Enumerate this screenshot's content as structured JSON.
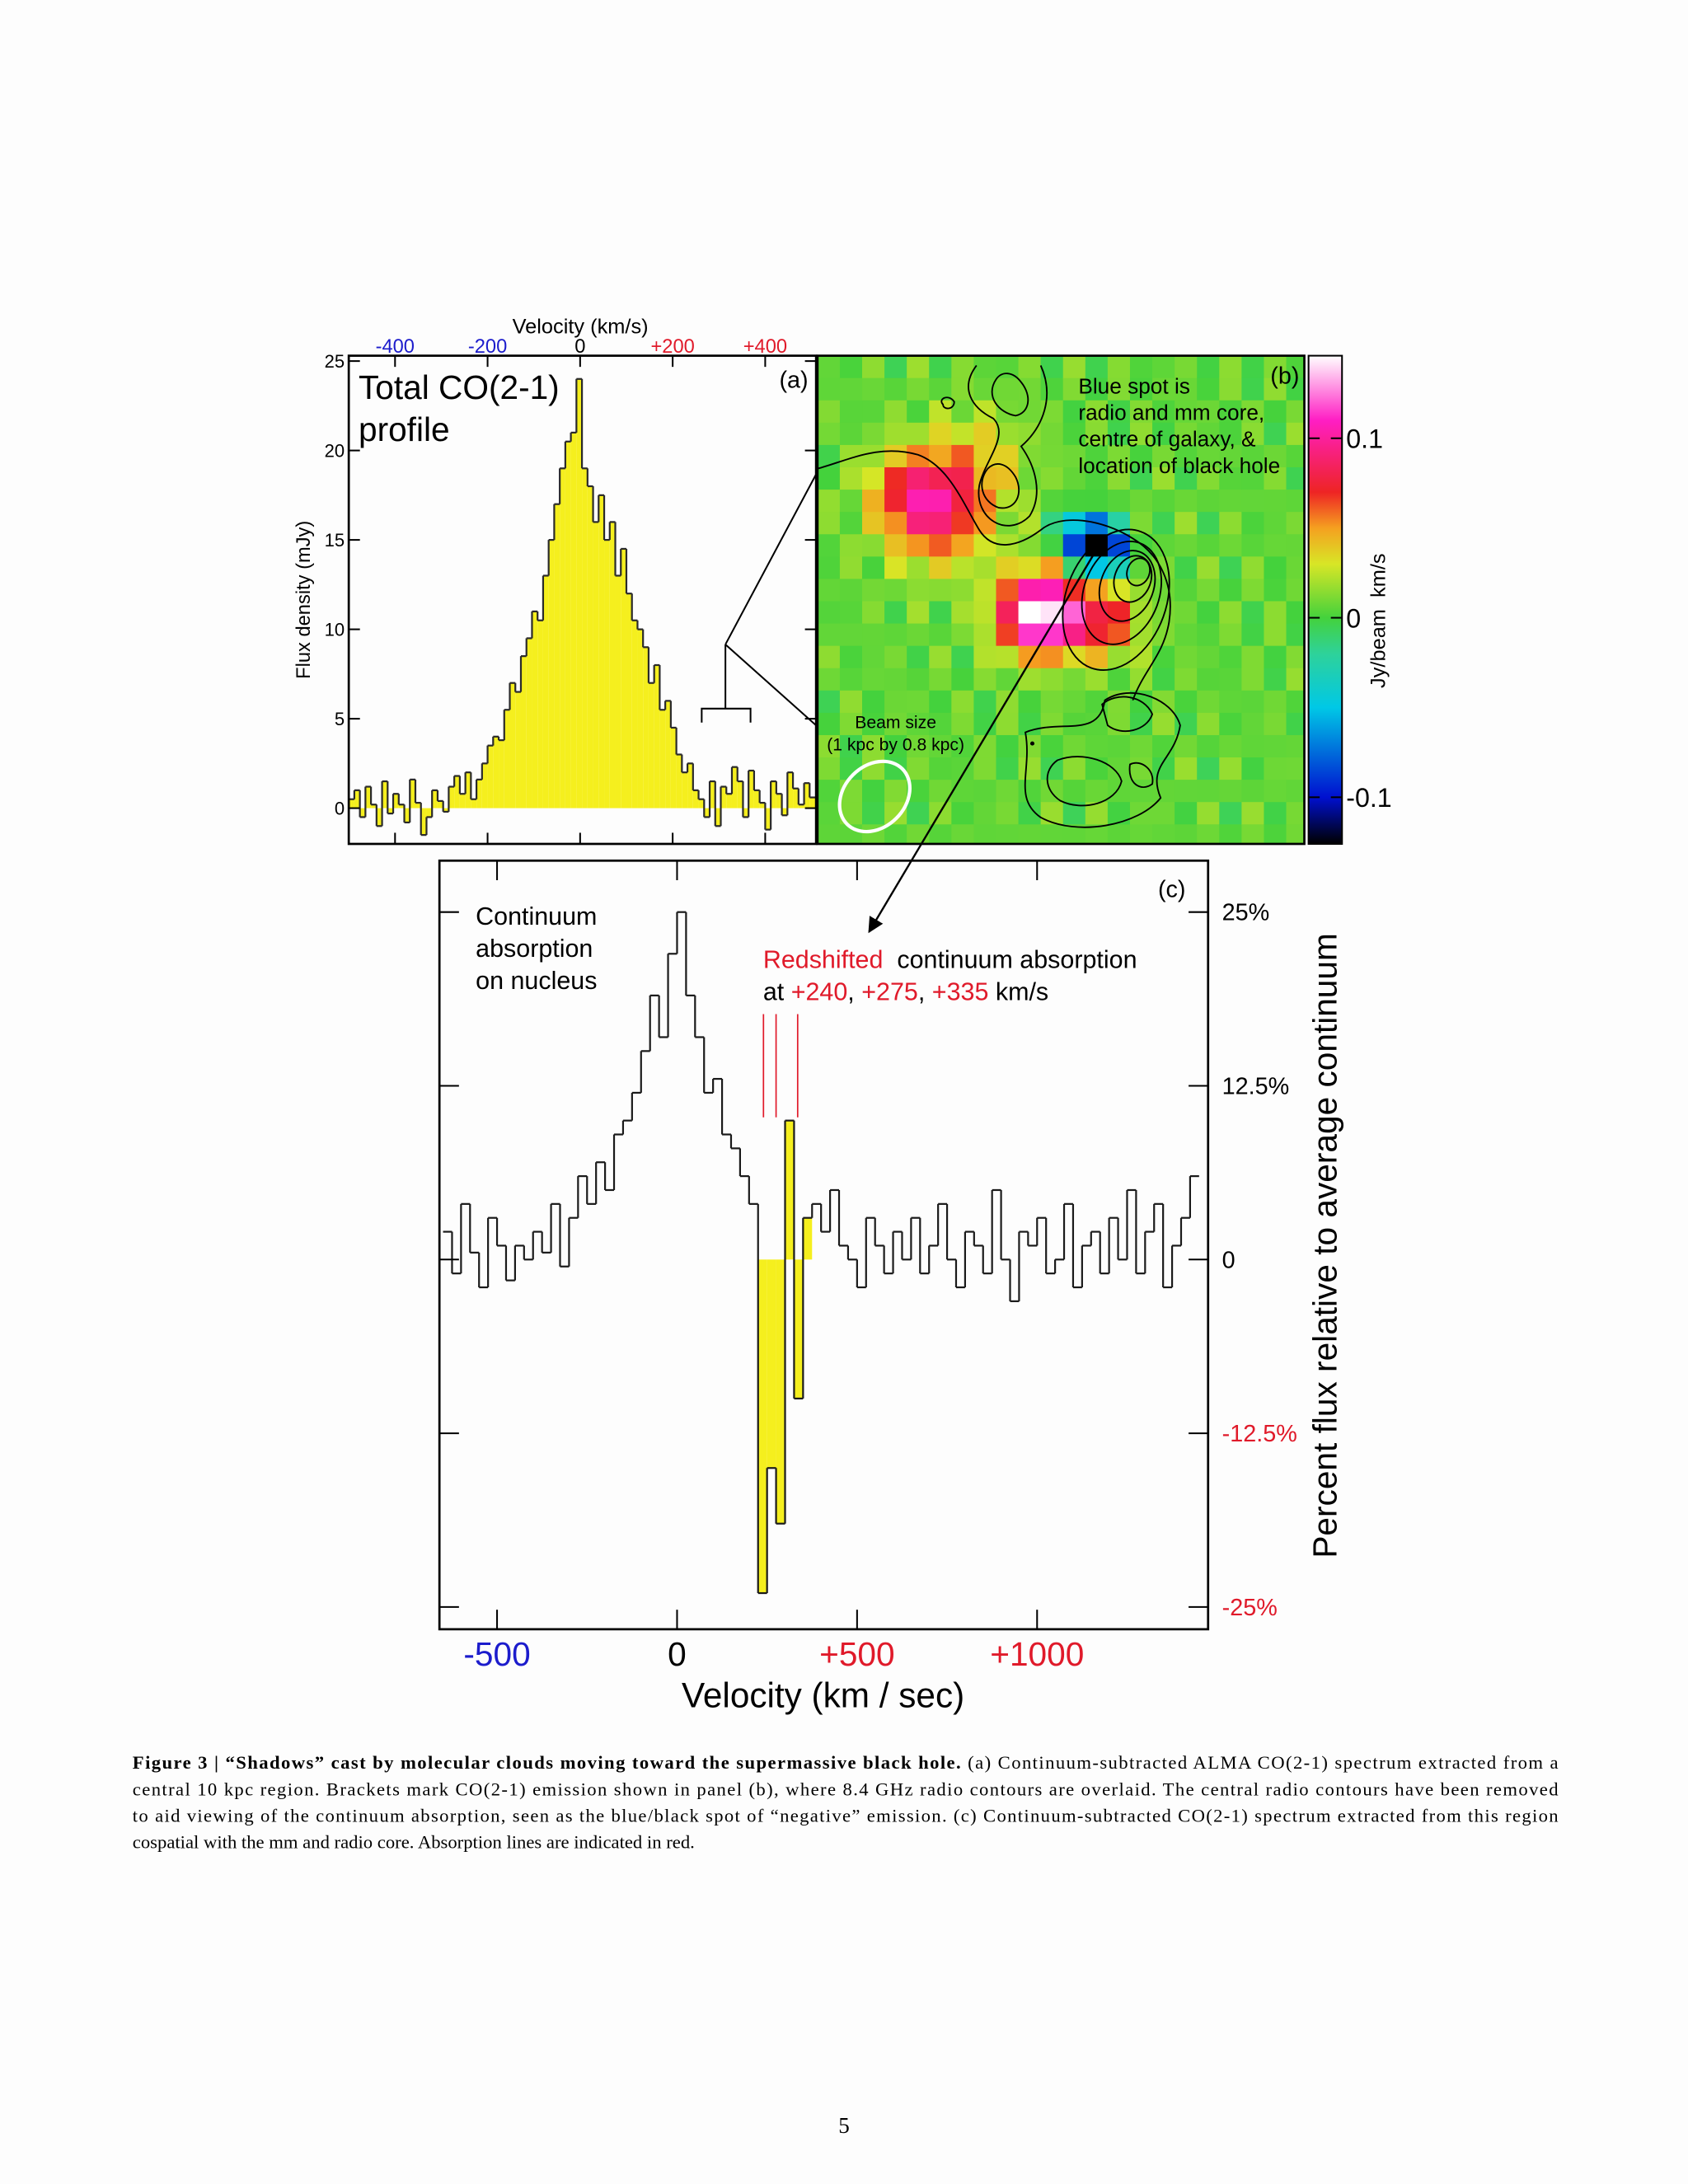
{
  "chart_data": [
    {
      "type": "histogram",
      "title_lines": [
        "Total CO(2-1)",
        "profile"
      ],
      "panel_label": "(a)",
      "xlabel": "Velocity (km/s)",
      "ylabel": "Flux density (mJy)",
      "bins": [
        -500,
        -488,
        -476,
        -464,
        -452,
        -440,
        -428,
        -416,
        -404,
        -392,
        -380,
        -368,
        -356,
        -344,
        -332,
        -320,
        -308,
        -296,
        -284,
        -272,
        -260,
        -248,
        -236,
        -224,
        -212,
        -200,
        -188,
        -176,
        -164,
        -152,
        -140,
        -128,
        -116,
        -104,
        -92,
        -80,
        -68,
        -56,
        -44,
        -32,
        -20,
        -8,
        4,
        16,
        28,
        40,
        52,
        64,
        76,
        88,
        100,
        112,
        124,
        136,
        148,
        160,
        172,
        184,
        196,
        208,
        220,
        232,
        244,
        256,
        268,
        280,
        292,
        304,
        316,
        328,
        340,
        352,
        364,
        376,
        388,
        400,
        412,
        424,
        436,
        448,
        460,
        472,
        484,
        496,
        508
      ],
      "values": [
        0.5,
        1,
        -0.5,
        1.2,
        0.2,
        -1,
        1.5,
        -0.3,
        0.8,
        0.2,
        -0.8,
        1.6,
        0.3,
        -1.5,
        -0.5,
        1,
        0.4,
        -0.2,
        1.2,
        1.8,
        0.8,
        2,
        0.5,
        1.6,
        2.5,
        3.5,
        4,
        3.8,
        5.5,
        7,
        6.5,
        8.5,
        9.5,
        11,
        10.5,
        13,
        15,
        17,
        19,
        20.5,
        21,
        24,
        19,
        18,
        16,
        17.5,
        15,
        16,
        13,
        14.5,
        12,
        10.5,
        10,
        9,
        7,
        8,
        5.5,
        6,
        4.5,
        3,
        2,
        2.5,
        1,
        0.5,
        -0.5,
        1.5,
        -1,
        1.2,
        0.8,
        2.3,
        1.5,
        -0.5,
        2.1,
        1,
        0.3,
        -1.2,
        1.5,
        0.8,
        -0.4,
        2,
        1.1,
        0.2,
        1.4,
        0.6
      ],
      "color": "#f5ef1e",
      "edge_color": "#2a2a2a",
      "xlim": [
        -500,
        510
      ],
      "xticks": [
        -400,
        -200,
        0,
        {
          "value": 200,
          "label": "+200"
        },
        {
          "value": 400,
          "label": "+400"
        }
      ],
      "xtick_colors": [
        "#1c1ccc",
        "#1c1ccc",
        "#000000",
        "#e01a2a",
        "#e01a2a"
      ],
      "ylim": [
        -2,
        25.3
      ],
      "yticks": [
        0,
        5,
        10,
        15,
        20,
        25
      ]
    },
    {
      "type": "histogram",
      "panel_label": "(c)",
      "xlabel": "Velocity (km / sec)",
      "ylabel": "Percent flux relative to average continuum",
      "bins": [
        -650,
        -625,
        -600,
        -575,
        -550,
        -525,
        -500,
        -475,
        -450,
        -425,
        -400,
        -375,
        -350,
        -325,
        -300,
        -275,
        -250,
        -225,
        -200,
        -175,
        -150,
        -125,
        -100,
        -75,
        -50,
        -25,
        0,
        25,
        50,
        75,
        100,
        125,
        150,
        175,
        200,
        225,
        250,
        275,
        300,
        325,
        350,
        375,
        400,
        425,
        450,
        475,
        500,
        525,
        550,
        575,
        600,
        625,
        650,
        675,
        700,
        725,
        750,
        775,
        800,
        825,
        850,
        875,
        900,
        925,
        950,
        975,
        1000,
        1025,
        1050,
        1075,
        1100,
        1125,
        1150,
        1175,
        1200,
        1225,
        1250,
        1275,
        1300,
        1325,
        1350,
        1375,
        1400,
        1425,
        1450
      ],
      "values": [
        2,
        -1,
        4,
        0.5,
        -2,
        3,
        1,
        -1.5,
        1,
        0,
        2,
        0.5,
        4,
        -0.5,
        3,
        6,
        4,
        7,
        5,
        9,
        10,
        12,
        15,
        19,
        16,
        22,
        25,
        19,
        16,
        12,
        13,
        9,
        8,
        6,
        4,
        -24,
        -15,
        -19,
        10,
        -10,
        3,
        4,
        2,
        5,
        1,
        0,
        -2,
        3,
        1,
        -1,
        2,
        0,
        3,
        -1,
        1,
        4,
        0,
        -2,
        2,
        1,
        -1,
        5,
        0,
        -3,
        2,
        1,
        3,
        -1,
        0,
        4,
        -2,
        1,
        2,
        -1,
        3,
        0,
        5,
        -1,
        2,
        4,
        -2,
        1,
        3,
        6
      ],
      "color": "#f5ef1e",
      "edge_color": "#1a1a1a",
      "fill_range": [
        225,
        375
      ],
      "xlim": [
        -660,
        1475
      ],
      "xticks": [
        -500,
        0,
        {
          "value": 500,
          "label": "+500"
        },
        {
          "value": 1000,
          "label": "+1000"
        }
      ],
      "xtick_colors": [
        "#1c1ccc",
        "#000000",
        "#e01a2a",
        "#e01a2a"
      ],
      "ylim": [
        -26.6,
        28.7
      ],
      "yticks": [
        {
          "value": -25,
          "label": "-25%"
        },
        {
          "value": -12.5,
          "label": "-12.5%"
        },
        0,
        {
          "value": 12.5,
          "label": "12.5%"
        },
        {
          "value": 25,
          "label": "25%"
        }
      ],
      "ytick_colors": [
        "#e01a2a",
        "#e01a2a",
        "#000000",
        "#000000",
        "#000000"
      ],
      "notes": {
        "left_lines": [
          "Continuum",
          "absorption",
          "on nucleus"
        ],
        "redshift_word": "Redshifted",
        "redshift_rest": "continuum absorption",
        "at": "at",
        "separator": ",",
        "unit": "km/s"
      },
      "absorption_lines": [
        {
          "value": 240,
          "label": "+240"
        },
        {
          "value": 275,
          "label": "+275"
        },
        {
          "value": 335,
          "label": "+335"
        }
      ],
      "absorption_color": "#e01a2a"
    }
  ],
  "panel_b": {
    "panel_label": "(b)",
    "note_lines": [
      "Blue spot is",
      "radio and mm core,",
      "centre of galaxy, &",
      "location of black hole"
    ],
    "beam_lines": [
      "Beam size",
      "(1 kpc by 0.8 kpc)"
    ],
    "colorbar": {
      "label": "Jy/beam  km/s",
      "lim": [
        -0.126,
        0.146
      ],
      "ticks": [
        -0.1,
        0,
        0.1
      ]
    }
  },
  "caption": {
    "label": "Figure 3 | “Shadows” cast by molecular clouds moving toward the supermassive black hole.",
    "lines": [
      " (a) Continuum-subtracted ALMA CO(2-1) spectrum extracted from a",
      "central 10 kpc region. Brackets mark CO(2-1) emission shown in panel (b), where 8.4 GHz radio contours are overlaid. The central radio contours have been removed",
      "to aid viewing of the continuum absorption, seen as the blue/black spot of “negative” emission. (c) Continuum-subtracted CO(2-1) spectrum extracted from this region",
      "cospatial with the mm and radio core. Absorption lines are indicated in red."
    ]
  },
  "page_number": "5"
}
